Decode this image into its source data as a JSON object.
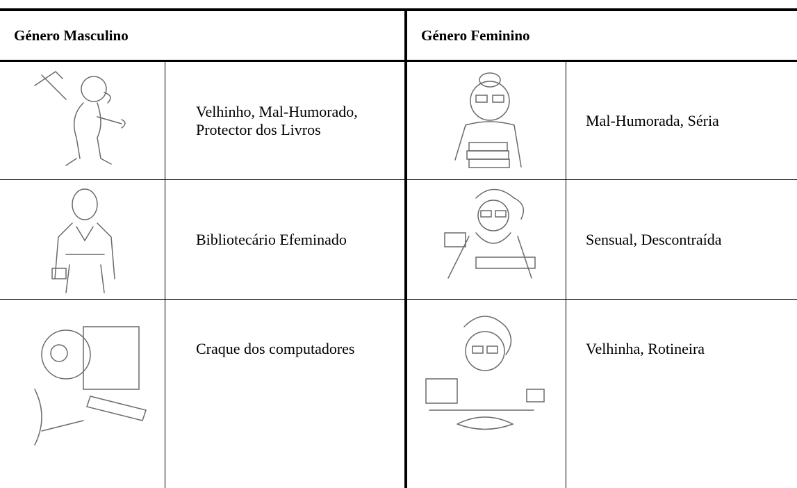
{
  "header": {
    "cells": [
      "Género Masculino",
      "Género Feminino"
    ]
  },
  "table": {
    "rows": [
      [
        "Velhinho, Mal-Humorado, Protector dos Livros",
        "Mal-Humorada, Séria"
      ],
      [
        "Bibliotecário Efeminado",
        "Sensual, Descontraída"
      ],
      [
        "Craque dos computadores",
        "Velhinha, Rotineira"
      ]
    ]
  }
}
